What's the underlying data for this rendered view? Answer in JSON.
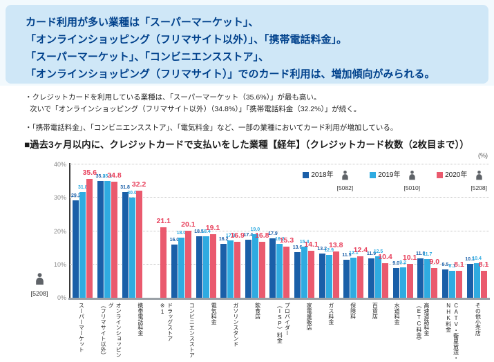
{
  "header": {
    "lines": [
      "カード利用が多い業種は「スーパーマーケット」、",
      "「オンラインショッピング（フリマサイト以外）」、「携帯電話料金」。",
      "「スーパーマーケット」、「コンビニエンスストア」、",
      "「オンラインショッピング（フリマサイト）」でのカード利用は、増加傾向がみられる。"
    ]
  },
  "bullets": [
    {
      "line1": "・クレジットカードを利用している業種は、「スーパーマーケット（35.6%）」が最も高い。",
      "line2": "次いで「オンラインショッピング（フリマサイト以外）（34.8%）」「携帯電話料金（32.2%）」が続く。"
    },
    {
      "line1": "・「携帯電話料金」、「コンビニエンスストア」、「電気料金」など、一部の業種においてカード利用が増加している。",
      "line2": ""
    }
  ],
  "section_title": "■過去3ヶ月以内に、クレジットカードで支払いをした業種【経年】（クレジットカード枚数（2枚目まで））",
  "axis": {
    "unit": "(%)",
    "zero_label": "0%",
    "base_count": "[5208]"
  },
  "icons": {
    "legend_icon": "person-icon",
    "base_icon": "person-icon"
  },
  "chart_data": {
    "type": "bar",
    "title": "過去3ヶ月以内に、クレジットカードで支払いをした業種【経年】（クレジットカード枚数（2枚目まで））",
    "unit": "(%)",
    "ylim": [
      0,
      40
    ],
    "yticks": [
      0,
      10,
      20,
      30,
      40
    ],
    "ytick_labels": [
      "0%",
      "10%",
      "20%",
      "30%",
      "40%"
    ],
    "grid": true,
    "legend_position": "top-right",
    "categories": [
      "スーパーマーケット",
      "オンラインショッピング（フリマサイト以外）",
      "携帯電話料金",
      "ドラッグストア※1",
      "コンビニエンスストア",
      "電気料金",
      "ガソリンスタンド",
      "飲食店",
      "プロバイダー（ISP）料金",
      "家電量販店",
      "ガス料金",
      "保険料",
      "百貨店",
      "水道料金",
      "高速道路料金（ETC料金）",
      "CATV・衛星放送・NHK料金",
      "その他小売店"
    ],
    "category_label_lines": [
      [
        "スーパーマーケット"
      ],
      [
        "オンラインショッピング",
        "（フリマサイト以外）"
      ],
      [
        "携帯電話料金"
      ],
      [
        "ドラッグストア",
        "※1"
      ],
      [
        "コンビニエンスストア"
      ],
      [
        "電気料金"
      ],
      [
        "ガソリンスタンド"
      ],
      [
        "飲食店"
      ],
      [
        "プロバイダー",
        "（ISP）料金"
      ],
      [
        "家電量販店"
      ],
      [
        "ガス料金"
      ],
      [
        "保険料"
      ],
      [
        "百貨店"
      ],
      [
        "水道料金"
      ],
      [
        "高速道路料金",
        "（ETC料金）"
      ],
      [
        "CATV・衛星放送・",
        "NHK料金"
      ],
      [
        "その他小売店"
      ]
    ],
    "series": [
      {
        "name": "2018年",
        "count": "[5082]",
        "color": "#1a5fa8",
        "label_color": "#1a5fa8",
        "values": [
          29.3,
          35.1,
          31.8,
          null,
          16.0,
          18.5,
          16.2,
          17.4,
          17.9,
          13.6,
          13.2,
          11.5,
          11.9,
          9.0,
          11.8,
          8.5,
          10.1
        ]
      },
      {
        "name": "2019年",
        "count": "[5010]",
        "color": "#2fabe1",
        "label_color": "#2fabe1",
        "values": [
          31.8,
          35.1,
          30.0,
          null,
          18.0,
          18.4,
          17.3,
          19.0,
          16.2,
          15.4,
          12.9,
          12.1,
          12.5,
          9.2,
          11.7,
          8.1,
          10.4
        ]
      },
      {
        "name": "2020年",
        "count": "[5208]",
        "color": "#ea5a6e",
        "label_color": "#e8415c",
        "values": [
          35.6,
          34.8,
          32.2,
          21.1,
          20.1,
          19.1,
          16.9,
          16.8,
          15.3,
          14.1,
          13.8,
          12.4,
          10.4,
          10.1,
          9.0,
          8.1,
          8.1
        ]
      }
    ]
  }
}
